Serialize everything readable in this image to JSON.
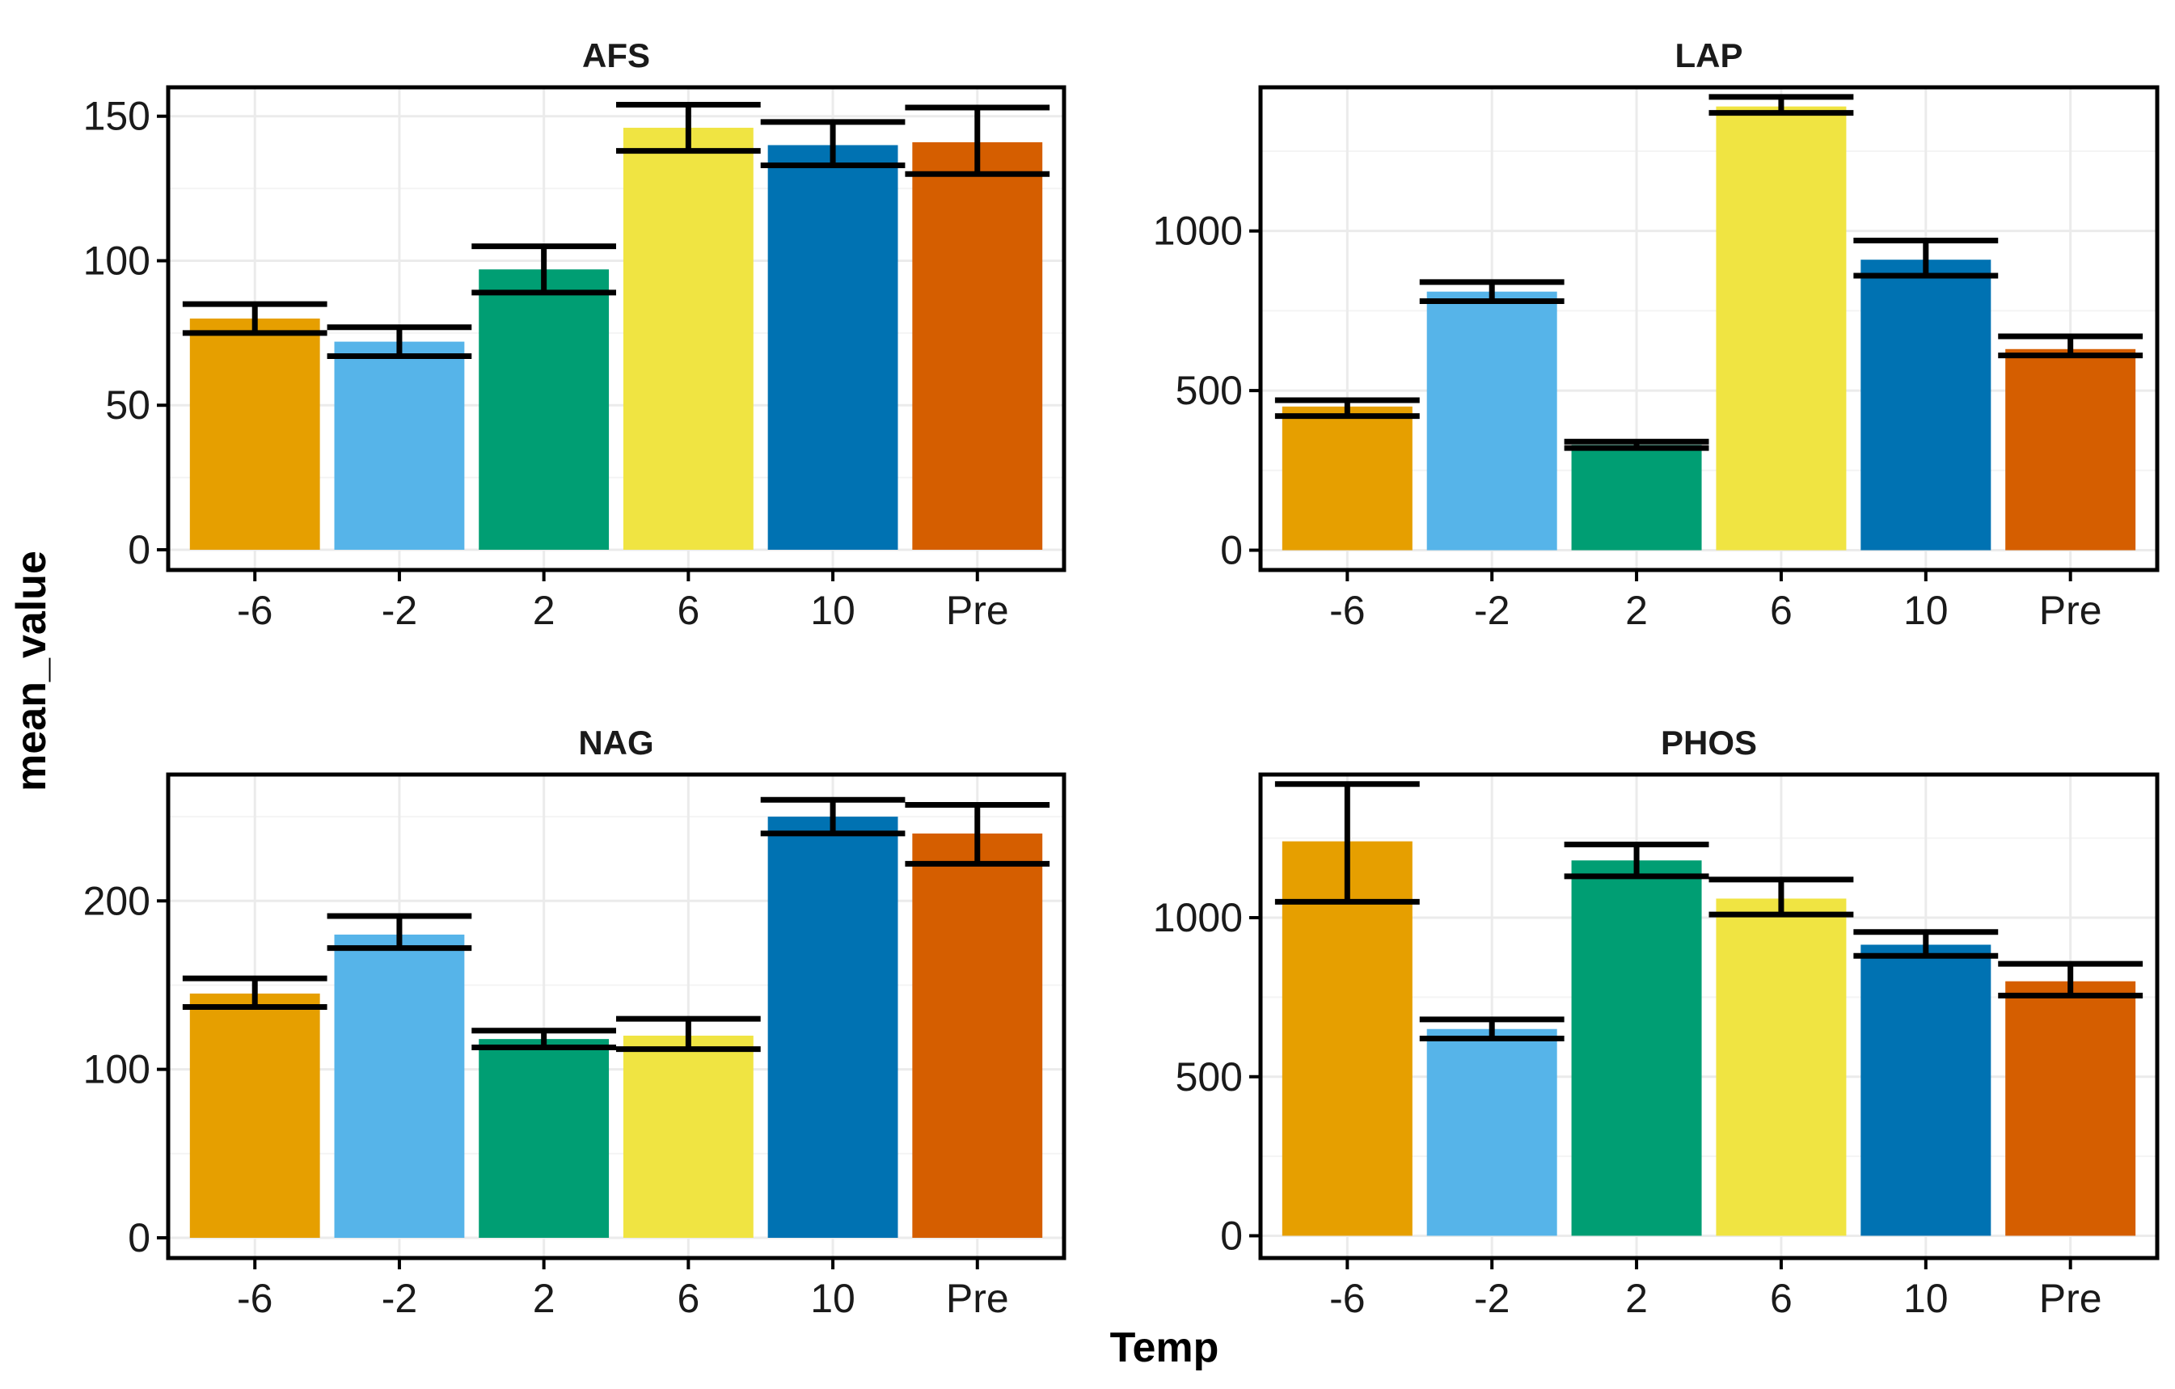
{
  "chart_data": {
    "type": "bar",
    "xlabel": "Temp",
    "ylabel": "mean_value",
    "grid": true,
    "legend": "none",
    "categories": [
      "-6",
      "-2",
      "2",
      "6",
      "10",
      "Pre"
    ],
    "colors": [
      "#E69F00",
      "#56B4E9",
      "#009E73",
      "#F0E442",
      "#0072B2",
      "#D55E00"
    ],
    "panels": [
      {
        "title": "AFS",
        "ylim": [
          -7,
          160
        ],
        "yticks": [
          0,
          50,
          100,
          150
        ],
        "values": [
          80,
          72,
          97,
          146,
          140,
          141
        ],
        "err_low": [
          75,
          67,
          89,
          138,
          133,
          130
        ],
        "err_high": [
          85,
          77,
          105,
          154,
          148,
          153
        ]
      },
      {
        "title": "LAP",
        "ylim": [
          -62,
          1450
        ],
        "yticks": [
          0,
          500,
          1000
        ],
        "values": [
          450,
          810,
          330,
          1390,
          910,
          630
        ],
        "err_low": [
          420,
          780,
          320,
          1370,
          860,
          610
        ],
        "err_high": [
          470,
          840,
          340,
          1420,
          970,
          670
        ]
      },
      {
        "title": "NAG",
        "ylim": [
          -12,
          275
        ],
        "yticks": [
          0,
          100,
          200
        ],
        "values": [
          145,
          180,
          118,
          120,
          250,
          240
        ],
        "err_low": [
          137,
          172,
          113,
          112,
          240,
          222
        ],
        "err_high": [
          154,
          191,
          123,
          130,
          260,
          257
        ]
      },
      {
        "title": "PHOS",
        "ylim": [
          -70,
          1450
        ],
        "yticks": [
          0,
          500,
          1000
        ],
        "values": [
          1240,
          650,
          1180,
          1060,
          915,
          800
        ],
        "err_low": [
          1050,
          620,
          1130,
          1010,
          880,
          755
        ],
        "err_high": [
          1420,
          680,
          1230,
          1120,
          955,
          855
        ]
      }
    ]
  }
}
